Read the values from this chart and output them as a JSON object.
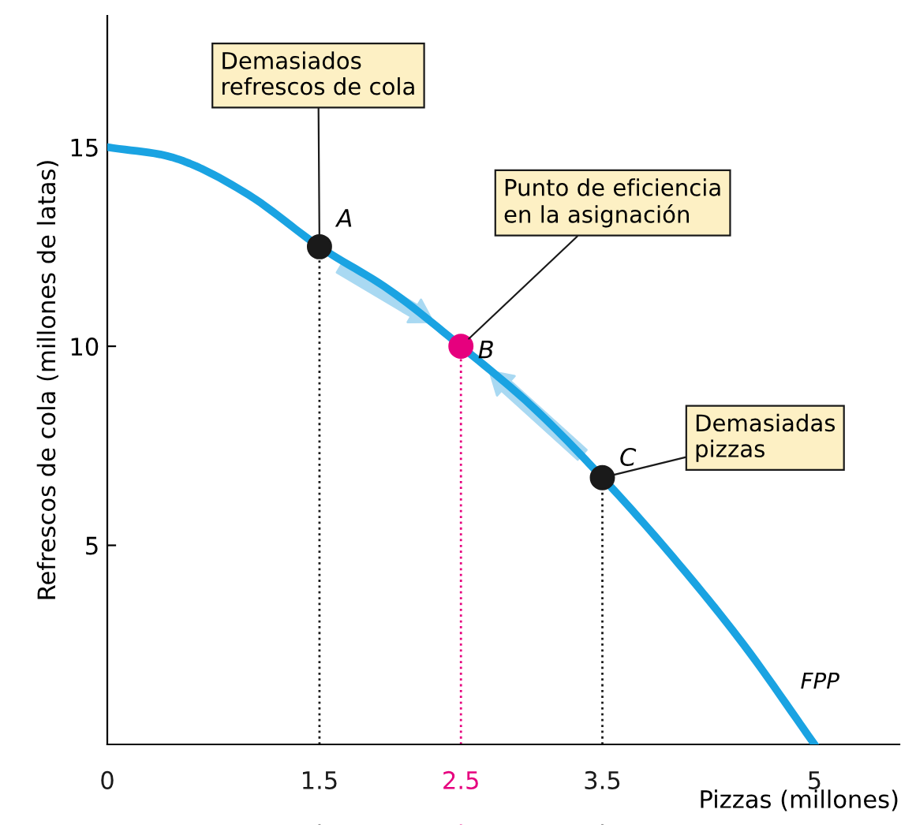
{
  "chart_data": {
    "type": "line",
    "xlabel": "Pizzas (millones)",
    "ylabel": "Refrescos de cola (millones de latas)",
    "xlim": [
      0,
      5.6
    ],
    "ylim": [
      0,
      18.3
    ],
    "xticks": [
      0,
      1.5,
      2.5,
      3.5,
      5
    ],
    "yticks": [
      5,
      10,
      15
    ],
    "grid": false,
    "series": [
      {
        "name": "FPP",
        "color": "#1aa3e2",
        "x": [
          0,
          0.5,
          1,
          1.5,
          2,
          2.5,
          3,
          3.5,
          4,
          4.5,
          5
        ],
        "values": [
          15,
          14.7,
          13.8,
          12.5,
          11.4,
          10,
          8.5,
          6.7,
          4.7,
          2.5,
          0
        ]
      },
      {
        "type": "scatter",
        "marker": "circle",
        "x": [
          1.5,
          2.5,
          3.5
        ],
        "values": [
          12.5,
          10,
          6.7
        ],
        "colors": [
          "#1a1a1a",
          "#e6007e",
          "#1a1a1a"
        ]
      }
    ],
    "ref_lines": [
      {
        "axis": "x",
        "value": 1.5,
        "color": "#1a1a1a",
        "line_style": "dotted"
      },
      {
        "axis": "x",
        "value": 2.5,
        "color": "#e6007e",
        "line_style": "dotted"
      },
      {
        "axis": "x",
        "value": 3.5,
        "color": "#1a1a1a",
        "line_style": "dotted"
      }
    ],
    "annotations": [
      {
        "text": "A",
        "x": 1.5,
        "y": 12.5
      },
      {
        "text": "Demasiados\nrefrescos de cola",
        "x": 1.5,
        "y": 12.5
      },
      {
        "text": "B",
        "x": 2.5,
        "y": 10
      },
      {
        "text": "Punto de eficiencia\nen la asignación",
        "x": 2.5,
        "y": 10
      },
      {
        "text": "C",
        "x": 3.5,
        "y": 6.7
      },
      {
        "text": "Demasiadas\npizzas",
        "x": 3.5,
        "y": 6.7
      }
    ]
  }
}
